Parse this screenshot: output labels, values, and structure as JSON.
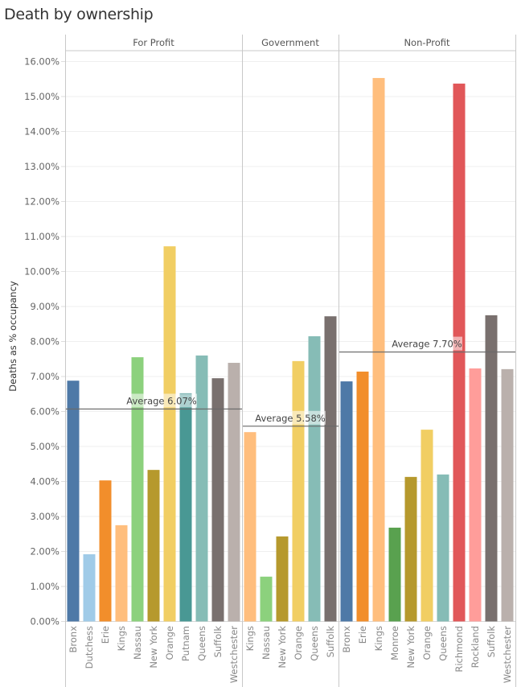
{
  "chart_data": {
    "type": "bar",
    "title": "Death by ownership",
    "xlabel": "",
    "ylabel": "Deaths as % occupancy",
    "ylim": [
      0,
      16.3
    ],
    "y_ticks": [
      "0.00%",
      "1.00%",
      "2.00%",
      "3.00%",
      "4.00%",
      "5.00%",
      "6.00%",
      "7.00%",
      "8.00%",
      "9.00%",
      "10.00%",
      "11.00%",
      "12.00%",
      "13.00%",
      "14.00%",
      "15.00%",
      "16.00%"
    ],
    "grid": true,
    "colors": {
      "Bronx": "#4e79a7",
      "Dutchess": "#a0cbe8",
      "Erie": "#f28e2b",
      "Kings": "#ffbe7d",
      "Nassau": "#8cd17d",
      "New York": "#b6992d",
      "Orange": "#f1ce63",
      "Putnam": "#499894",
      "Queens": "#86bcb6",
      "Suffolk": "#79706e",
      "Westchester": "#bab0ac",
      "Monroe": "#59a14f",
      "Richmond": "#e15759",
      "Rockland": "#ff9d9a"
    },
    "panels": [
      {
        "name": "For Profit",
        "categories": [
          "Bronx",
          "Dutchess",
          "Erie",
          "Kings",
          "Nassau",
          "New York",
          "Orange",
          "Putnam",
          "Queens",
          "Suffolk",
          "Westchester"
        ],
        "values": [
          6.88,
          1.92,
          4.03,
          2.75,
          7.55,
          4.33,
          10.72,
          6.52,
          7.6,
          6.95,
          7.39
        ],
        "average": 6.07,
        "average_label": "Average 6.07%"
      },
      {
        "name": "Government",
        "categories": [
          "Kings",
          "Nassau",
          "New York",
          "Orange",
          "Queens",
          "Suffolk"
        ],
        "values": [
          5.41,
          1.28,
          2.43,
          7.44,
          8.15,
          8.72
        ],
        "average": 5.58,
        "average_label": "Average 5.58%"
      },
      {
        "name": "Non-Profit",
        "categories": [
          "Bronx",
          "Erie",
          "Kings",
          "Monroe",
          "New York",
          "Orange",
          "Queens",
          "Richmond",
          "Rockland",
          "Suffolk",
          "Westchester"
        ],
        "values": [
          6.86,
          7.14,
          15.53,
          2.68,
          4.13,
          5.48,
          4.2,
          15.37,
          7.23,
          8.75,
          7.21
        ],
        "average": 7.7,
        "average_label": "Average 7.70%"
      }
    ]
  }
}
